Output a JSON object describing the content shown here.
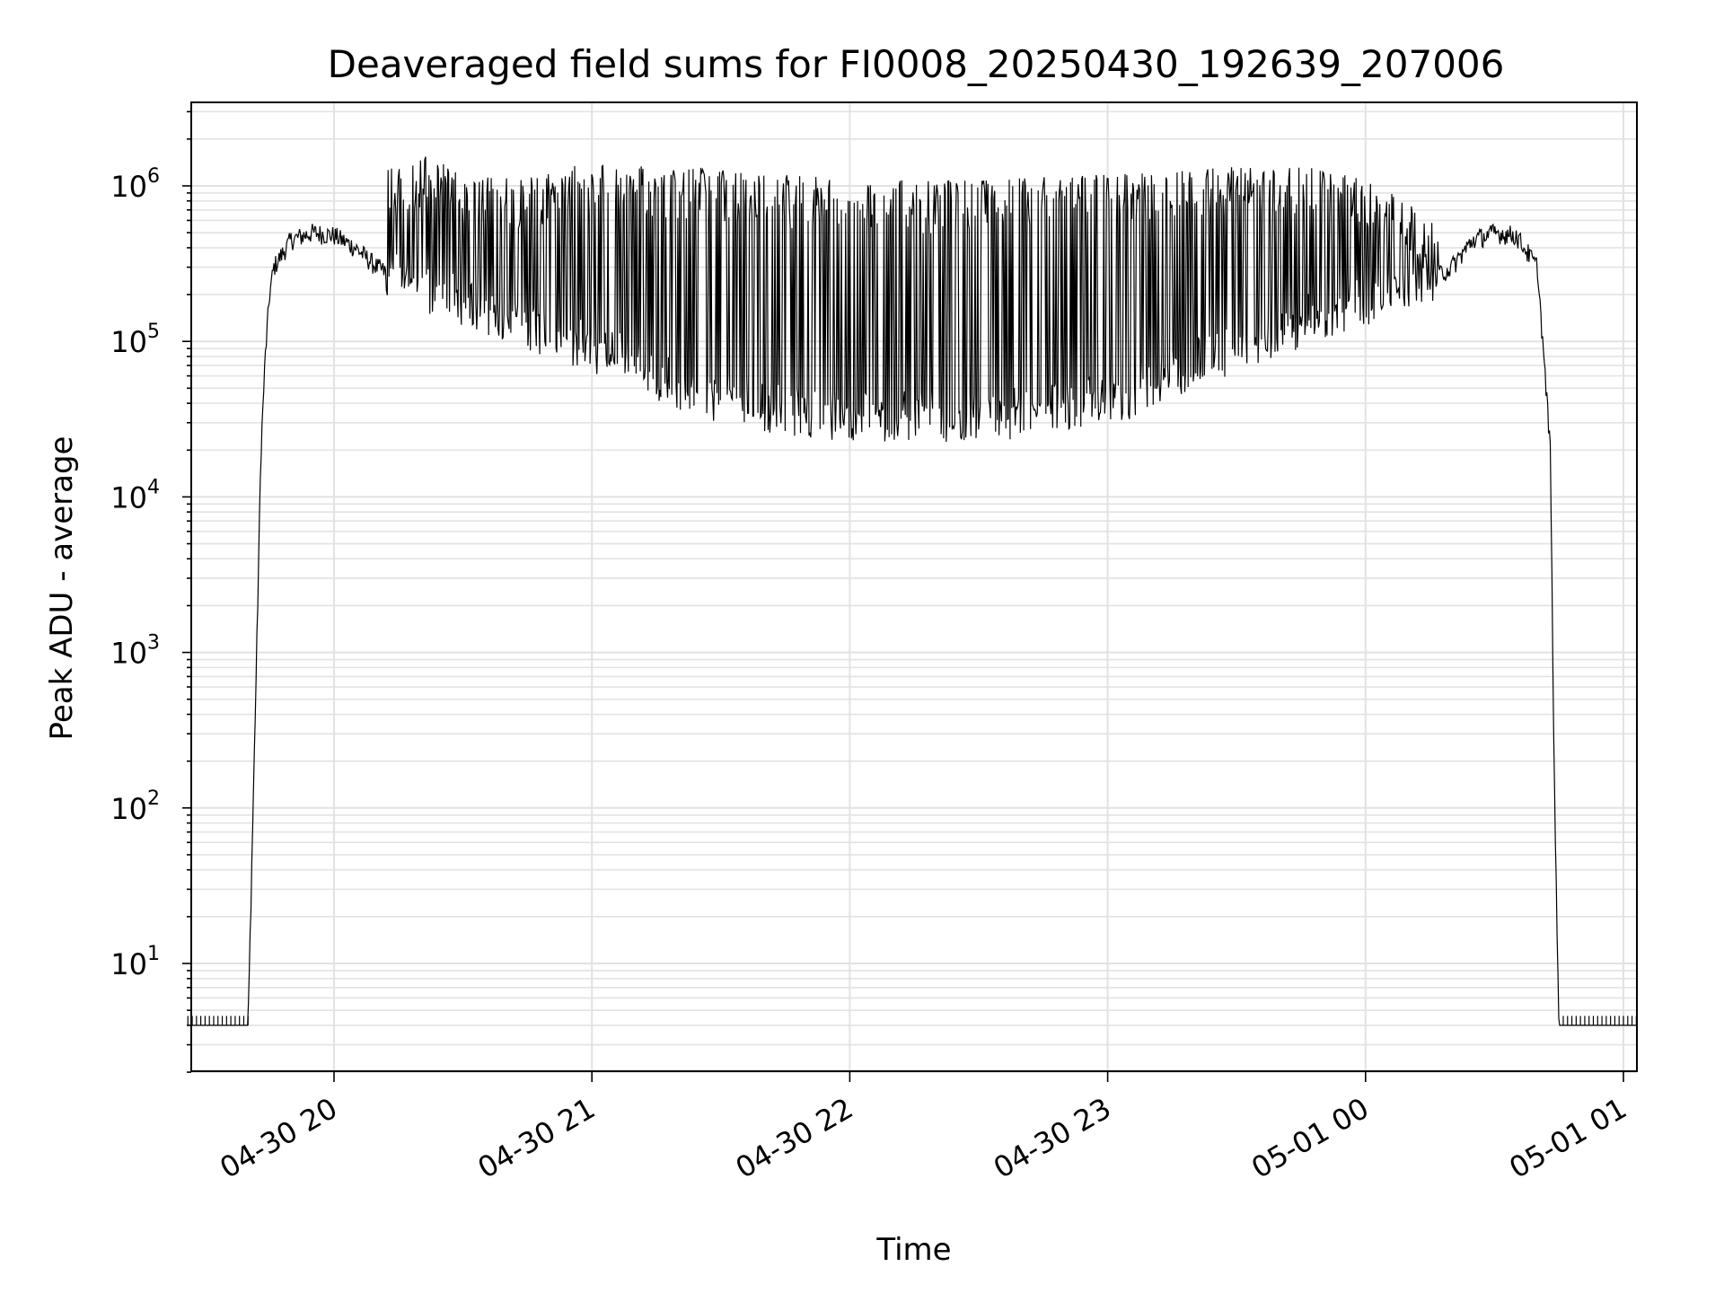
{
  "chart_data": {
    "type": "line",
    "title": "Deaveraged field sums for FI0008_20250430_192639_207006",
    "xlabel": "Time",
    "ylabel": "Peak ADU - average",
    "x_ticks": [
      "04-30 20",
      "04-30 21",
      "04-30 22",
      "04-30 23",
      "05-01 00",
      "05-01 01"
    ],
    "y_scale": "log",
    "ylim": [
      2,
      3200000
    ],
    "y_ticks": [
      {
        "value": 10,
        "base": "10",
        "exp": "1"
      },
      {
        "value": 100,
        "base": "10",
        "exp": "2"
      },
      {
        "value": 1000,
        "base": "10",
        "exp": "3"
      },
      {
        "value": 10000,
        "base": "10",
        "exp": "4"
      },
      {
        "value": 100000,
        "base": "10",
        "exp": "5"
      },
      {
        "value": 1000000,
        "base": "10",
        "exp": "6"
      }
    ],
    "grid": true,
    "line_color": "#000000",
    "series": [
      {
        "x": [
          "2025-04-30 19:26",
          "2025-04-30 19:40",
          "2025-04-30 19:42",
          "2025-04-30 19:43",
          "2025-04-30 19:44",
          "2025-04-30 19:45",
          "2025-04-30 19:46",
          "2025-04-30 19:50",
          "2025-04-30 19:55",
          "2025-04-30 20:00",
          "2025-04-30 20:05",
          "2025-04-30 20:10",
          "2025-04-30 20:15",
          "2025-04-30 20:25",
          "2025-04-30 20:35",
          "2025-04-30 20:45",
          "2025-04-30 20:55",
          "2025-04-30 21:05",
          "2025-04-30 21:15",
          "2025-04-30 21:25",
          "2025-04-30 21:35",
          "2025-04-30 21:45",
          "2025-04-30 21:55",
          "2025-04-30 22:05",
          "2025-04-30 22:15",
          "2025-04-30 22:25",
          "2025-04-30 22:35",
          "2025-04-30 22:45",
          "2025-04-30 22:55",
          "2025-04-30 23:05",
          "2025-04-30 23:15",
          "2025-04-30 23:25",
          "2025-04-30 23:35",
          "2025-04-30 23:45",
          "2025-04-30 23:55",
          "2025-05-01 00:05",
          "2025-05-01 00:15",
          "2025-05-01 00:20",
          "2025-05-01 00:25",
          "2025-05-01 00:30",
          "2025-05-01 00:35",
          "2025-05-01 00:40",
          "2025-05-01 00:43",
          "2025-05-01 00:44",
          "2025-05-01 00:45",
          "2025-05-01 00:46",
          "2025-05-01 01:03"
        ],
        "y": [
          4,
          4,
          1000,
          20000,
          80000,
          200000,
          300000,
          450000,
          500000,
          480000,
          400000,
          300000,
          250000,
          200000,
          160000,
          120000,
          100000,
          80000,
          60000,
          45000,
          40000,
          35000,
          33000,
          32000,
          32000,
          32000,
          33000,
          35000,
          40000,
          45000,
          60000,
          80000,
          100000,
          130000,
          160000,
          200000,
          250000,
          300000,
          450000,
          500000,
          480000,
          300000,
          20000,
          100,
          4,
          4,
          4
        ]
      }
    ],
    "envelope_upper": {
      "x": [
        "2025-04-30 20:14",
        "2025-04-30 20:24",
        "2025-04-30 20:30",
        "2025-04-30 20:45",
        "2025-04-30 21:00",
        "2025-04-30 21:30",
        "2025-04-30 22:00",
        "2025-04-30 22:30",
        "2025-04-30 23:00",
        "2025-04-30 23:30",
        "2025-04-30 23:50",
        "2025-05-01 00:05",
        "2025-05-01 00:15"
      ],
      "y": [
        1400000,
        1700000,
        1100000,
        1200000,
        1400000,
        1300000,
        1100000,
        1100000,
        1200000,
        1350000,
        1300000,
        1000000,
        600000
      ]
    }
  }
}
